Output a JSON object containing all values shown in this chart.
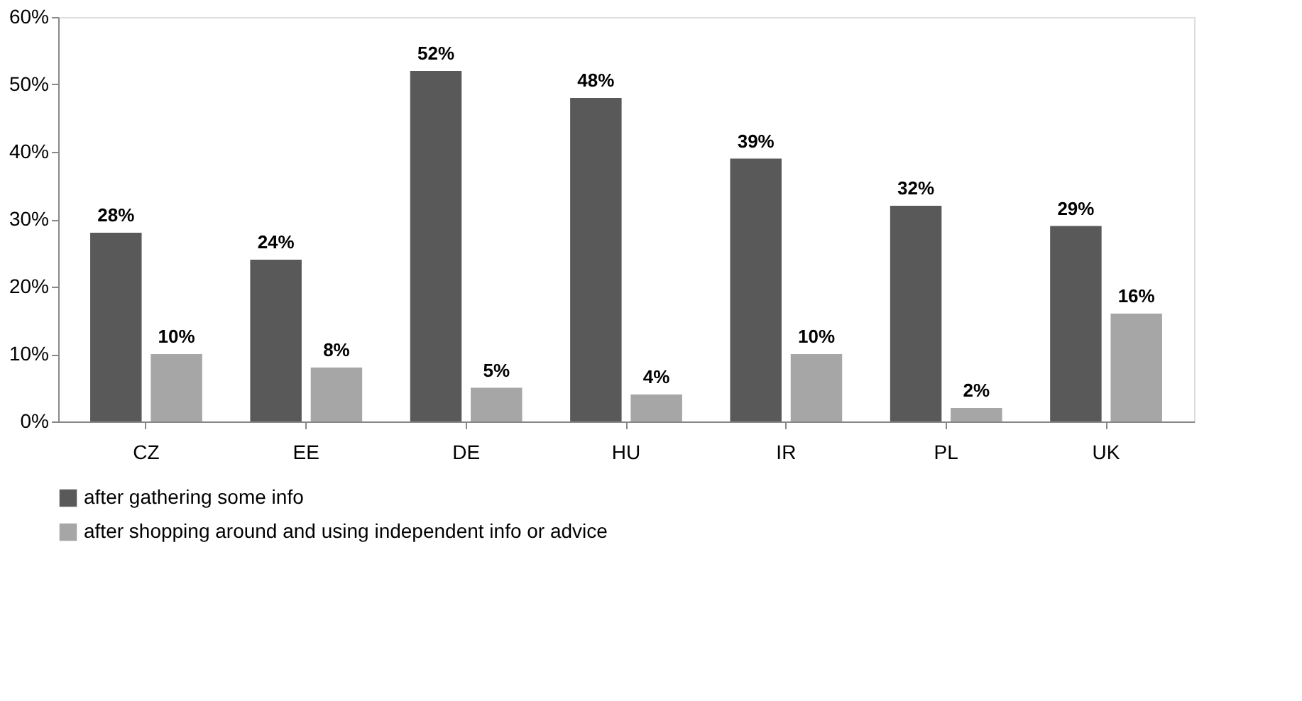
{
  "chart_data": {
    "type": "bar",
    "categories": [
      "CZ",
      "EE",
      "DE",
      "HU",
      "IR",
      "PL",
      "UK"
    ],
    "series": [
      {
        "name": "after gathering some info",
        "color": "#595959",
        "values": [
          28,
          24,
          52,
          48,
          39,
          32,
          29
        ],
        "value_labels": [
          "28%",
          "24%",
          "52%",
          "48%",
          "39%",
          "32%",
          "29%"
        ]
      },
      {
        "name": "after shopping around and using independent info or advice",
        "color": "#a6a6a6",
        "values": [
          10,
          8,
          5,
          4,
          10,
          2,
          16
        ],
        "value_labels": [
          "10%",
          "8%",
          "5%",
          "4%",
          "10%",
          "2%",
          "16%"
        ]
      }
    ],
    "ylim": [
      0,
      60
    ],
    "yticks": [
      {
        "value": 0,
        "label": "0%"
      },
      {
        "value": 10,
        "label": "10%"
      },
      {
        "value": 20,
        "label": "20%"
      },
      {
        "value": 30,
        "label": "30%"
      },
      {
        "value": 40,
        "label": "40%"
      },
      {
        "value": 50,
        "label": "50%"
      },
      {
        "value": 60,
        "label": "60%"
      }
    ],
    "grid": false,
    "legend": "bottom"
  }
}
